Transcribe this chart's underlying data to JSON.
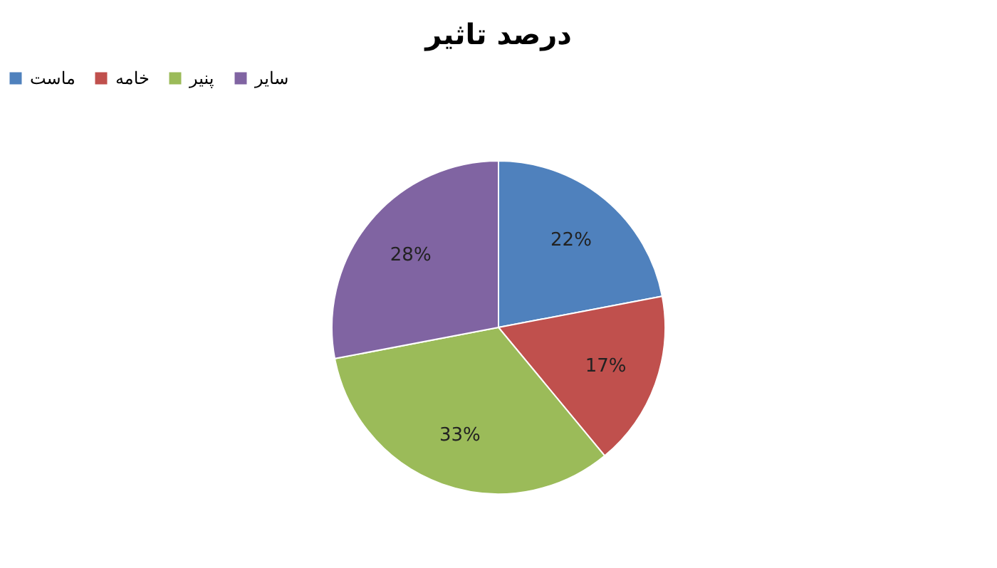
{
  "chart_data": {
    "type": "pie",
    "title": "درصد تاثیر",
    "categories": [
      "ماست",
      "خامه",
      "پنیر",
      "سایر"
    ],
    "values": [
      22,
      17,
      33,
      28
    ],
    "colors": [
      "#4f81bd",
      "#c0504d",
      "#9bbb59",
      "#8064a2"
    ],
    "value_labels": [
      "22%",
      "17%",
      "33%",
      "28%"
    ],
    "legend": "top"
  }
}
